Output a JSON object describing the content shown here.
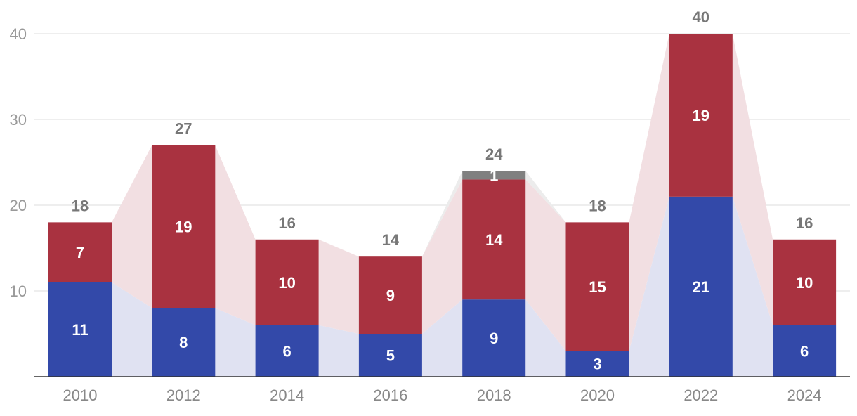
{
  "chart_data": {
    "type": "bar",
    "stacked": true,
    "title": "",
    "xlabel": "",
    "ylabel": "",
    "ylim": [
      0,
      40
    ],
    "yticks": [
      10,
      20,
      30,
      40
    ],
    "grid": true,
    "categories": [
      "2010",
      "2012",
      "2014",
      "2016",
      "2018",
      "2020",
      "2022",
      "2024"
    ],
    "series": [
      {
        "color": "#3349a9",
        "fill_color": "#e0e2f2",
        "values": [
          11,
          8,
          6,
          5,
          9,
          3,
          21,
          6
        ]
      },
      {
        "color": "#a93240",
        "fill_color": "#f2dfe2",
        "values": [
          7,
          19,
          10,
          9,
          14,
          15,
          19,
          10
        ]
      },
      {
        "color": "#808080",
        "fill_color": "#ececec",
        "values": [
          0,
          0,
          0,
          0,
          1,
          0,
          0,
          0
        ]
      }
    ],
    "totals": [
      18,
      27,
      16,
      14,
      24,
      18,
      40,
      16
    ]
  }
}
